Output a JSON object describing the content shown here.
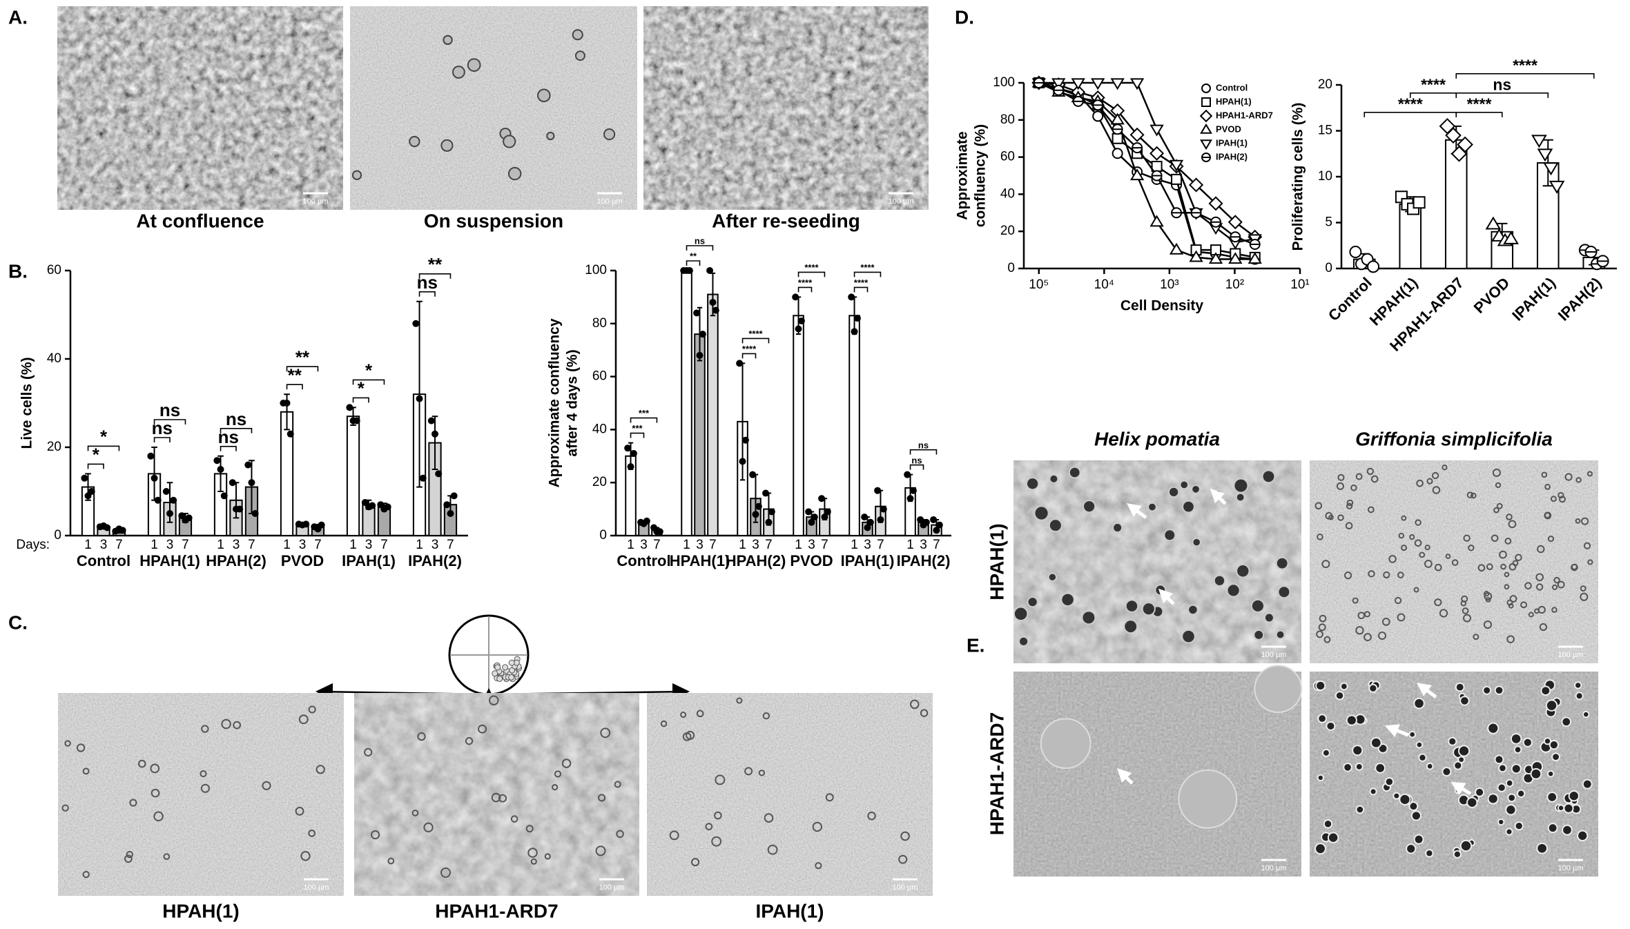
{
  "figure": {
    "panel_labels": [
      "A.",
      "B.",
      "C.",
      "D.",
      "E."
    ],
    "scale_bar": "100 µm",
    "panel_a": {
      "captions": [
        "At confluence",
        "On suspension",
        "After re-seeding"
      ]
    },
    "panel_c": {
      "captions": [
        "HPAH(1)",
        "HPAH1-ARD7",
        "IPAH(1)"
      ]
    },
    "panel_e": {
      "columns": [
        "Helix pomatia",
        "Griffonia simplicifolia"
      ],
      "rows": [
        "HPAH(1)",
        "HPAH1-ARD7"
      ]
    }
  },
  "chart_data": [
    {
      "type": "bar",
      "ylabel": [
        "Live cells (%)"
      ],
      "days_label": "Days:",
      "categories": [
        "Control",
        "HPAH(1)",
        "HPAH(2)",
        "PVOD",
        "IPAH(1)",
        "IPAH(2)"
      ],
      "series": [
        {
          "name": "1",
          "color": "#ffffff",
          "values": [
            11,
            14,
            14,
            28,
            27,
            32
          ],
          "errors": [
            3,
            6,
            4,
            4,
            2,
            21
          ],
          "points": [
            [
              13,
              9,
              10
            ],
            [
              18,
              13,
              8
            ],
            [
              17,
              15,
              9
            ],
            [
              30,
              30,
              23
            ],
            [
              29,
              26,
              26
            ],
            [
              48,
              31,
              13
            ]
          ]
        },
        {
          "name": "3",
          "color": "#d4d4d4",
          "values": [
            2,
            7.5,
            8,
            2.5,
            7,
            21
          ],
          "errors": [
            0.5,
            4.5,
            4,
            0.3,
            1,
            6
          ],
          "points": [
            [
              2,
              2.2,
              1.8
            ],
            [
              10,
              5,
              8
            ],
            [
              12,
              6,
              6
            ],
            [
              2.6,
              2.4,
              2.6
            ],
            [
              7.5,
              6.5,
              6.8
            ],
            [
              26,
              23,
              14
            ]
          ]
        },
        {
          "name": "7",
          "color": "#a9a9a9",
          "values": [
            1.2,
            4,
            11,
            2,
            6.5,
            7
          ],
          "errors": [
            0.6,
            1,
            6,
            0.5,
            0.8,
            2
          ],
          "points": [
            [
              1,
              1.5,
              1.2
            ],
            [
              4.5,
              3.5,
              4
            ],
            [
              16,
              12,
              5
            ],
            [
              2,
              1.5,
              2.4
            ],
            [
              7,
              6,
              6.5
            ],
            [
              7,
              5,
              9
            ]
          ]
        }
      ],
      "significance": [
        [
          "*",
          "*"
        ],
        [
          "ns",
          "ns"
        ],
        [
          "ns",
          "ns"
        ],
        [
          "**",
          "**"
        ],
        [
          "*",
          "*"
        ],
        [
          "ns",
          "**"
        ]
      ],
      "ylim": [
        0,
        60
      ],
      "yticks": [
        0,
        20,
        40,
        60
      ]
    },
    {
      "type": "bar",
      "ylabel": [
        "Approximate confluency",
        "after 4 days (%)"
      ],
      "categories": [
        "Control",
        "HPAH(1)",
        "HPAH(2)",
        "PVOD",
        "IPAH(1)",
        "IPAH(2)"
      ],
      "series": [
        {
          "name": "1",
          "color": "#ffffff",
          "values": [
            30,
            100,
            43,
            83,
            83,
            18
          ],
          "errors": [
            5,
            0,
            22,
            7,
            7,
            5
          ],
          "points": [
            [
              33,
              26,
              31
            ],
            [
              100,
              100,
              100
            ],
            [
              65,
              28,
              36
            ],
            [
              90,
              78,
              81
            ],
            [
              90,
              77,
              82
            ],
            [
              23,
              14,
              17
            ]
          ]
        },
        {
          "name": "3",
          "color": "#b0b0b0",
          "values": [
            5,
            76,
            14,
            7,
            5,
            5
          ],
          "errors": [
            0.5,
            10,
            9,
            2,
            2,
            1
          ],
          "points": [
            [
              5,
              4.5,
              5.5
            ],
            [
              84,
              68,
              76
            ],
            [
              23,
              8,
              11
            ],
            [
              9,
              5,
              7
            ],
            [
              7,
              3,
              5
            ],
            [
              6,
              4,
              5
            ]
          ]
        },
        {
          "name": "7",
          "color": "#dcdcdc",
          "values": [
            2,
            91,
            10,
            10,
            11,
            4
          ],
          "errors": [
            1,
            8,
            6,
            4,
            6,
            2
          ],
          "points": [
            [
              3,
              1.5,
              1.5
            ],
            [
              100,
              88,
              85
            ],
            [
              16,
              5,
              9
            ],
            [
              14,
              7,
              9
            ],
            [
              17,
              6,
              10
            ],
            [
              6,
              2,
              4
            ]
          ]
        }
      ],
      "significance": [
        [
          "***",
          "***"
        ],
        [
          "**",
          "ns"
        ],
        [
          "****",
          "****"
        ],
        [
          "****",
          "****"
        ],
        [
          "****",
          "****"
        ],
        [
          "ns",
          "ns"
        ]
      ],
      "ylim": [
        0,
        100
      ],
      "yticks": [
        0,
        20,
        40,
        60,
        80,
        100
      ]
    },
    {
      "type": "line",
      "ylabel": [
        "Approximate",
        "confluency (%)"
      ],
      "xlabel": "Cell Density",
      "x": [
        100000,
        50000,
        25000,
        12500,
        6250,
        3125,
        1562,
        781,
        390,
        195,
        98,
        49
      ],
      "xscale": "log",
      "xlim": [
        170000,
        10
      ],
      "xticks": [
        {
          "value": 100000,
          "label": "10⁵"
        },
        {
          "value": 10000,
          "label": "10⁴"
        },
        {
          "value": 1000,
          "label": "10³"
        },
        {
          "value": 100,
          "label": "10²"
        },
        {
          "value": 10,
          "label": "10¹"
        }
      ],
      "ylim": [
        0,
        100
      ],
      "yticks": [
        0,
        20,
        40,
        60,
        80,
        100
      ],
      "legend": "upper right",
      "series": [
        {
          "name": "Control",
          "color": "#000000",
          "marker": "circle",
          "values": [
            100,
            97,
            94,
            82,
            62,
            52,
            48,
            45,
            9,
            8,
            6,
            5
          ]
        },
        {
          "name": "HPAH(1)",
          "color": "#000000",
          "marker": "square",
          "values": [
            100,
            97,
            93,
            88,
            70,
            62,
            55,
            48,
            10,
            10,
            8,
            6
          ]
        },
        {
          "name": "HPAH1-ARD7",
          "color": "#000000",
          "marker": "diamond",
          "values": [
            100,
            99,
            95,
            92,
            85,
            72,
            62,
            55,
            45,
            35,
            25,
            17
          ]
        },
        {
          "name": "PVOD",
          "color": "#000000",
          "marker": "triangle",
          "values": [
            100,
            95,
            92,
            90,
            80,
            50,
            25,
            10,
            6,
            5,
            5,
            5
          ]
        },
        {
          "name": "IPAH(1)",
          "color": "#000000",
          "marker": "triangle-down",
          "values": [
            100,
            100,
            100,
            100,
            100,
            100,
            75,
            56,
            30,
            22,
            14,
            16
          ]
        },
        {
          "name": "IPAH(2)",
          "color": "#000000",
          "marker": "circle-bar",
          "values": [
            100,
            96,
            90,
            88,
            75,
            65,
            50,
            30,
            30,
            25,
            17,
            13
          ]
        }
      ]
    },
    {
      "type": "bar",
      "ylabel": [
        "Proliferating cells (%)"
      ],
      "categories": [
        "Control",
        "HPAH(1)",
        "HPAH1-ARD7",
        "PVOD",
        "IPAH(1)",
        "IPAH(2)"
      ],
      "values": [
        1,
        7,
        14,
        4,
        11.5,
        1.2
      ],
      "errors": [
        0.6,
        0.8,
        1.5,
        0.9,
        2.5,
        0.8
      ],
      "points": [
        [
          1.8,
          0.5,
          1,
          0.2
        ],
        [
          7.8,
          7,
          6.5,
          7.2
        ],
        [
          15.5,
          14.5,
          12.5,
          13.5
        ],
        [
          4.8,
          3.5,
          3,
          3.2
        ],
        [
          14,
          12.5,
          11,
          9
        ],
        [
          2,
          1.8,
          0.5,
          0.8
        ]
      ],
      "markers": [
        "circle",
        "square",
        "diamond",
        "triangle",
        "triangle-down",
        "circle-bar"
      ],
      "color": "#ffffff",
      "comparisons": [
        {
          "pair": [
            "Control",
            "HPAH1-ARD7"
          ],
          "label": "****"
        },
        {
          "pair": [
            "HPAH1-ARD7",
            "PVOD"
          ],
          "label": "****"
        },
        {
          "pair": [
            "HPAH(1)",
            "HPAH1-ARD7"
          ],
          "label": "****"
        },
        {
          "pair": [
            "HPAH1-ARD7",
            "IPAH(1)"
          ],
          "label": "ns"
        },
        {
          "pair": [
            "HPAH1-ARD7",
            "IPAH(2)"
          ],
          "label": "****"
        }
      ],
      "ylim": [
        0,
        20
      ],
      "yticks": [
        0,
        5,
        10,
        15,
        20
      ]
    }
  ]
}
